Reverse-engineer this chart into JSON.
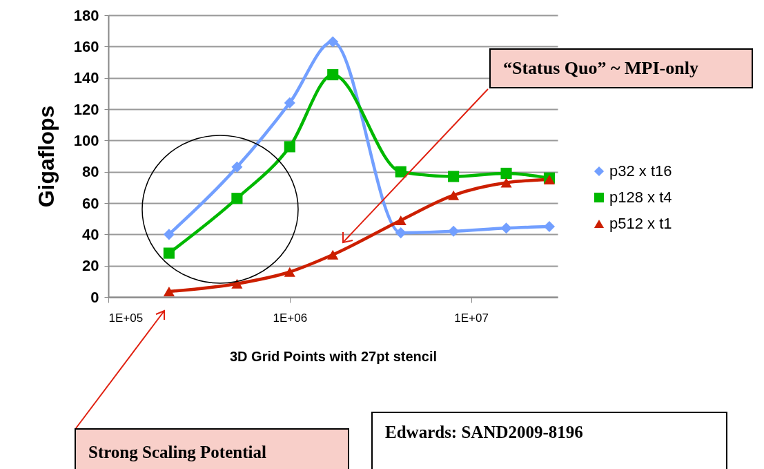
{
  "chart_data": {
    "type": "line",
    "xlabel": "3D Grid Points with 27pt stencil",
    "ylabel": "Gigaflops",
    "x": [
      216000,
      512000,
      1000000,
      1728000,
      4096000,
      8000000,
      15625000,
      27000000
    ],
    "series": [
      {
        "name": "p32 x t16",
        "color": "#729fff",
        "marker": "diamond",
        "values": [
          40,
          83,
          124,
          163,
          41,
          42,
          44,
          45
        ]
      },
      {
        "name": "p128 x t4",
        "color": "#00b800",
        "marker": "square",
        "values": [
          28,
          63,
          96,
          142,
          80,
          77,
          79,
          76
        ]
      },
      {
        "name": "p512 x t1",
        "color": "#cc1f00",
        "marker": "triangle",
        "values": [
          3.5,
          8.5,
          16,
          27,
          49,
          65,
          73,
          75
        ]
      }
    ],
    "log": "x",
    "xlim": [
      100000,
      30000000
    ],
    "xticks": [
      {
        "value": 100000,
        "label": "1E+05"
      },
      {
        "value": 1000000,
        "label": "1E+06"
      },
      {
        "value": 10000000,
        "label": "1E+07"
      }
    ],
    "ylim": [
      0,
      180
    ],
    "yticks": [
      0,
      20,
      40,
      60,
      80,
      100,
      120,
      140,
      160,
      180
    ],
    "grid": "y",
    "legend": "right",
    "annotations": [
      "“Status Quo” ~ MPI-only",
      "Strong Scaling Potential",
      "Edwards: SAND2009-8196"
    ]
  }
}
